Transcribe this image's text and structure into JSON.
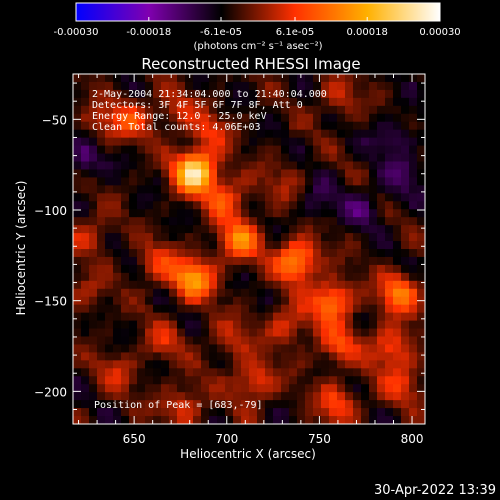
{
  "colorbar": {
    "min": -0.0003,
    "max": 0.0003,
    "tick_labels": [
      "-0.00030",
      "-0.00018",
      "-6.1e-05",
      "6.1e-05",
      "0.00018",
      "0.00030"
    ],
    "tick_values": [
      -0.0003,
      -0.00018,
      -6.1e-05,
      6.1e-05,
      0.00018,
      0.0003
    ],
    "unit_label": "(photons cm⁻² s⁻¹ asec⁻²)",
    "colormap": [
      "#0000ff",
      "#8000b0",
      "#000000",
      "#ff3000",
      "#ffb000",
      "#ffffff"
    ]
  },
  "chart_data": {
    "type": "heatmap",
    "title": "Reconstructed RHESSI Image",
    "xlabel": "Heliocentric X (arcsec)",
    "ylabel": "Heliocentric Y (arcsec)",
    "xlim": [
      617,
      807
    ],
    "ylim": [
      -218,
      -25
    ],
    "x_ticks": [
      650,
      700,
      750,
      800
    ],
    "x_tick_labels": [
      "650",
      "700",
      "750",
      "800"
    ],
    "y_ticks": [
      -50,
      -100,
      -150,
      -200
    ],
    "y_tick_labels": [
      "−50",
      "−100",
      "−150",
      "−200"
    ],
    "annotations": [
      "2-May-2004 21:34:04.000 to 21:40:04.000",
      "Detectors: 3F 4F 5F 6F 7F 8F, Att 0",
      "Energy Range: 12.0 - 25.0 keV",
      "Clean     Total counts: 4.06E+03"
    ],
    "peak_label": "Position of Peak = [683,-79]",
    "sources": [
      {
        "x": 683,
        "y": -79,
        "value": 0.0003
      },
      {
        "x": 700,
        "y": -94,
        "value": 0.00012
      },
      {
        "x": 707,
        "y": -117,
        "value": 0.00016
      },
      {
        "x": 682,
        "y": -138,
        "value": 0.0002
      },
      {
        "x": 662,
        "y": -130,
        "value": 9e-05
      },
      {
        "x": 738,
        "y": -128,
        "value": 0.0002
      },
      {
        "x": 757,
        "y": -150,
        "value": 0.00017
      },
      {
        "x": 793,
        "y": -146,
        "value": 0.00016
      },
      {
        "x": 760,
        "y": -175,
        "value": 0.00011
      },
      {
        "x": 789,
        "y": -176,
        "value": 0.00013
      },
      {
        "x": 733,
        "y": -163,
        "value": 0.0001
      },
      {
        "x": 702,
        "y": -172,
        "value": 8e-05
      },
      {
        "x": 715,
        "y": -195,
        "value": 0.00012
      },
      {
        "x": 676,
        "y": -208,
        "value": 0.0001
      },
      {
        "x": 760,
        "y": -207,
        "value": 0.00011
      },
      {
        "x": 795,
        "y": -196,
        "value": 9e-05
      },
      {
        "x": 665,
        "y": -173,
        "value": 7e-05
      },
      {
        "x": 640,
        "y": -190,
        "value": 7e-05
      },
      {
        "x": 626,
        "y": -113,
        "value": 8e-05
      },
      {
        "x": 649,
        "y": -50,
        "value": 0.0001
      },
      {
        "x": 673,
        "y": -45,
        "value": 7e-05
      },
      {
        "x": 691,
        "y": -57,
        "value": 8e-05
      },
      {
        "x": 632,
        "y": -53,
        "value": 7e-05
      },
      {
        "x": 760,
        "y": -38,
        "value": 7e-05
      },
      {
        "x": 730,
        "y": -85,
        "value": 5e-05
      },
      {
        "x": 624,
        "y": -147,
        "value": 6e-05
      },
      {
        "x": 773,
        "y": -98,
        "value": -6e-05
      },
      {
        "x": 790,
        "y": -60,
        "value": -7e-05
      },
      {
        "x": 623,
        "y": -72,
        "value": -8e-05
      },
      {
        "x": 795,
        "y": -82,
        "value": -6e-05
      },
      {
        "x": 750,
        "y": -95,
        "value": -5e-05
      }
    ]
  },
  "timestamp": "30-Apr-2022 13:39"
}
